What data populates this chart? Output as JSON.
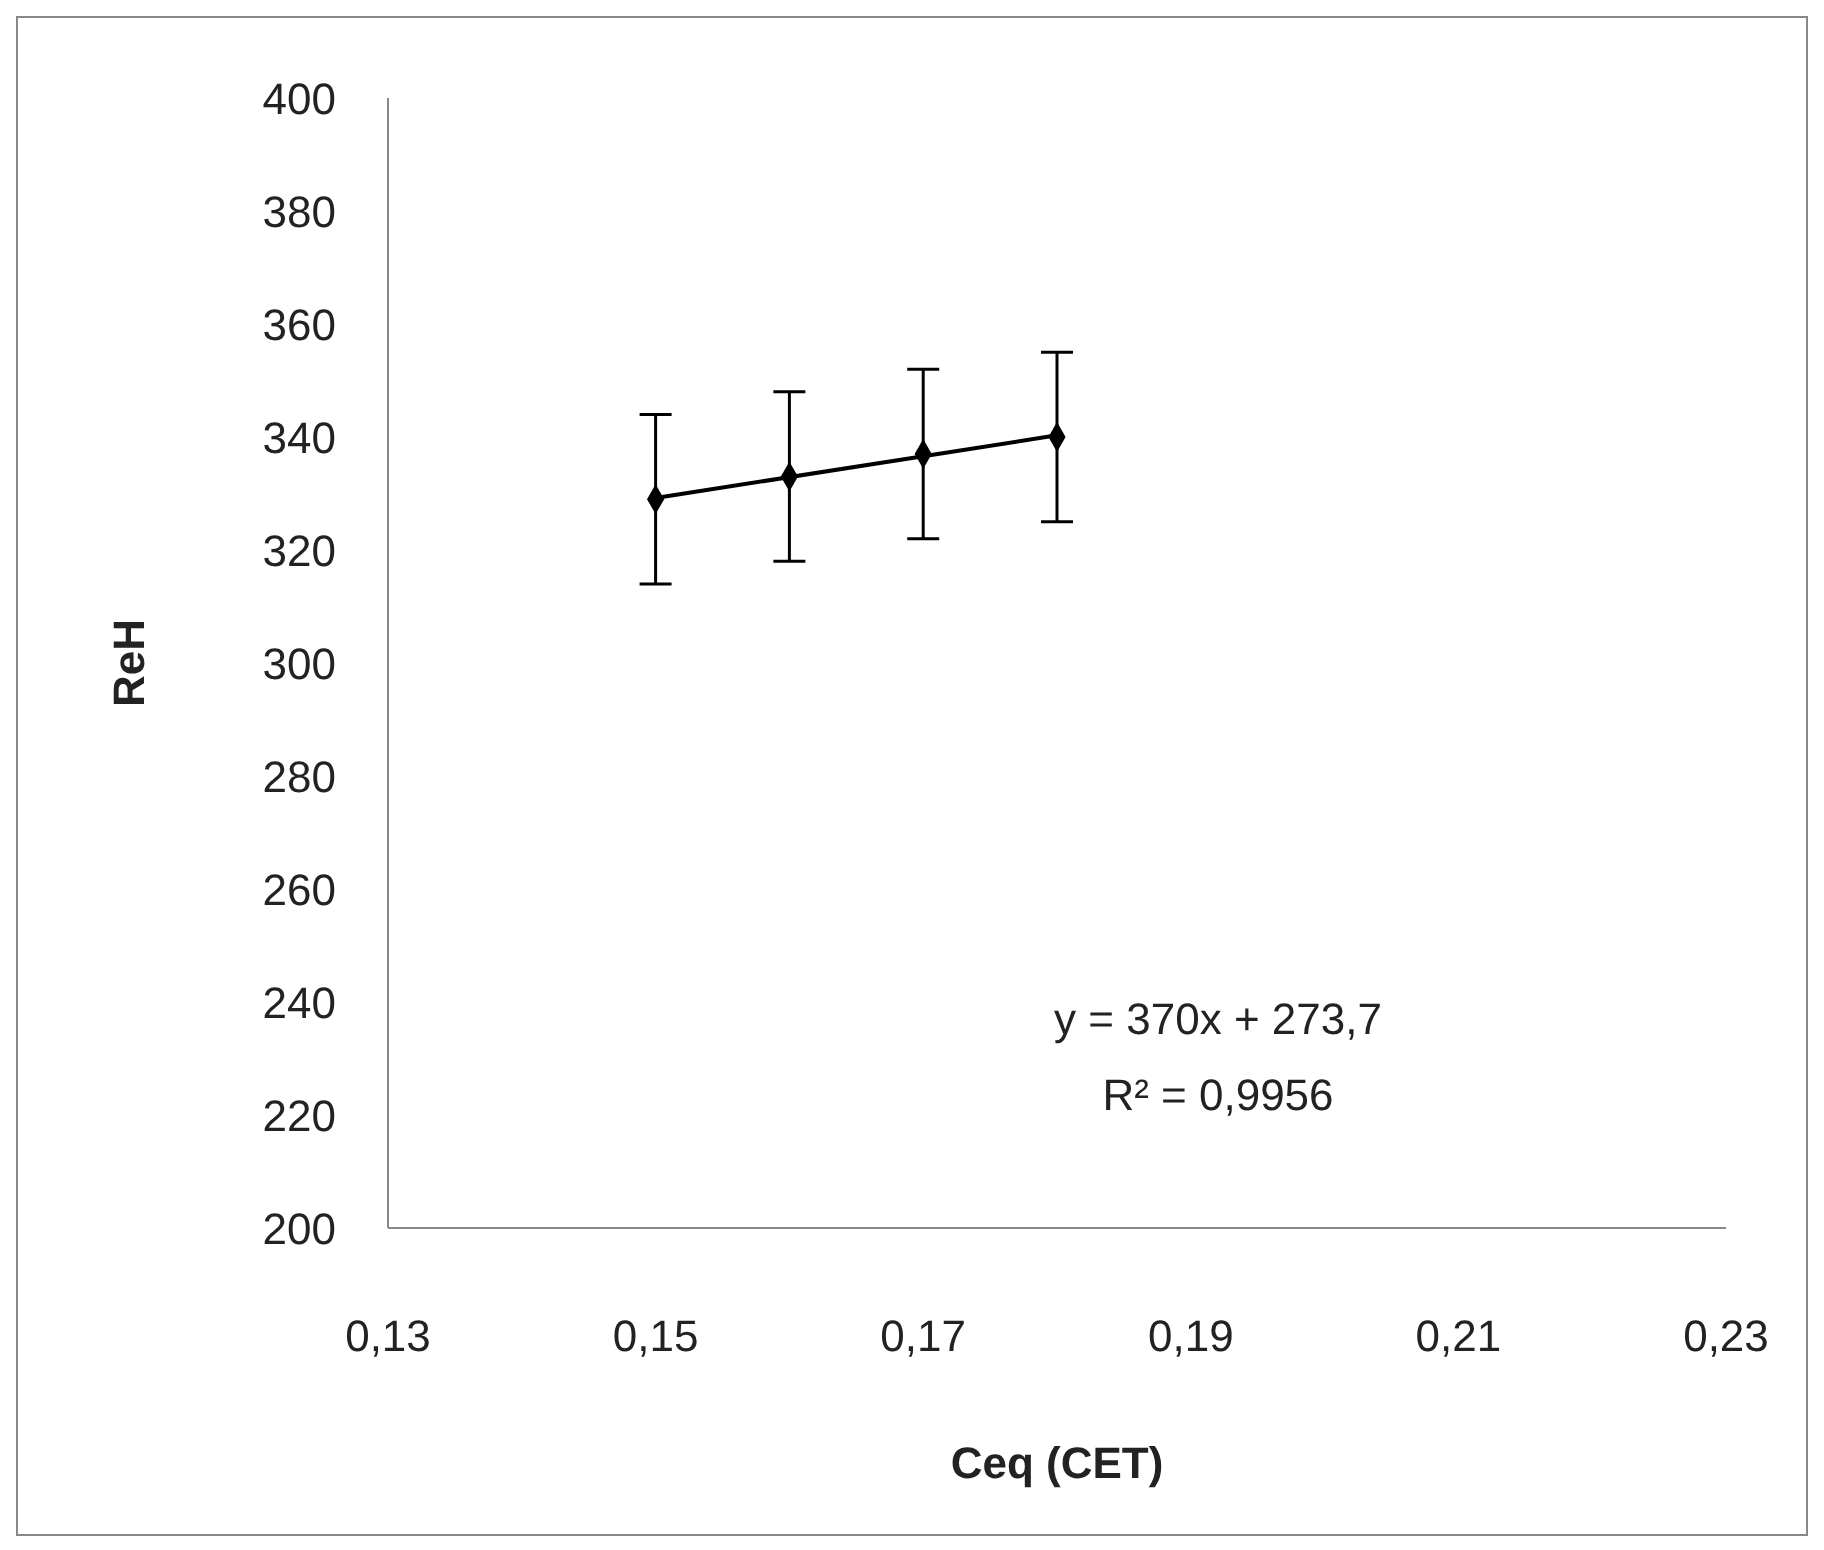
{
  "chart_data": {
    "type": "scatter",
    "xlabel": "Ceq (CET)",
    "ylabel": "ReH",
    "xlim": [
      0.13,
      0.23
    ],
    "xticks": [
      {
        "value": 0.13,
        "label": "0,13"
      },
      {
        "value": 0.15,
        "label": "0,15"
      },
      {
        "value": 0.17,
        "label": "0,17"
      },
      {
        "value": 0.19,
        "label": "0,19"
      },
      {
        "value": 0.21,
        "label": "0,21"
      },
      {
        "value": 0.23,
        "label": "0,23"
      }
    ],
    "ylim": [
      200,
      400
    ],
    "yticks": [
      200,
      220,
      240,
      260,
      280,
      300,
      320,
      340,
      360,
      380,
      400
    ],
    "series": [
      {
        "type": "scatter",
        "color": "#000000",
        "marker": "diamond",
        "x": [
          0.15,
          0.16,
          0.17,
          0.18
        ],
        "values": [
          329,
          333,
          337,
          340
        ],
        "errors": [
          15,
          15,
          15,
          15
        ]
      },
      {
        "type": "line",
        "color": "#000000",
        "x": [
          0.15,
          0.18
        ],
        "values": [
          329.2,
          340.3
        ]
      }
    ],
    "annotations": [
      "y = 370x + 273,7",
      "R² = 0,9956"
    ]
  }
}
